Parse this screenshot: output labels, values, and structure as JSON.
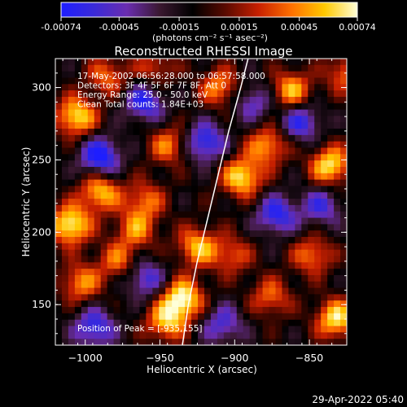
{
  "colorbar": {
    "tick_labels": [
      "-0.00074",
      "-0.00045",
      "-0.00015",
      "0.00015",
      "0.00045",
      "0.00074"
    ],
    "units_label": "(photons cm⁻² s⁻¹ asec⁻²)",
    "range": [
      -0.00074,
      0.00074
    ],
    "colors": [
      "#1e1eff",
      "#3a2ad8",
      "#6a2db0",
      "#3a1830",
      "#000000",
      "#5a0a00",
      "#c82000",
      "#ff7000",
      "#ffc800",
      "#ffffd8"
    ]
  },
  "chart_data": {
    "type": "heatmap",
    "title": "Reconstructed RHESSI Image",
    "xlabel": "Heliocentric X (arcsec)",
    "ylabel": "Heliocentric Y (arcsec)",
    "xlim": [
      -1020,
      -825
    ],
    "ylim": [
      122,
      320
    ],
    "xticks": [
      -1000,
      -950,
      -900,
      -850
    ],
    "yticks": [
      150,
      200,
      250,
      300
    ],
    "xtick_labels": [
      "−1000",
      "−950",
      "−900",
      "−850"
    ],
    "ytick_labels": [
      "150",
      "200",
      "250",
      "300"
    ],
    "annotations": [
      "17-May-2002 06:56:28.000 to 06:57:58.000",
      "Detectors: 3F 4F 5F 6F 7F 8F, Att 0",
      "Energy Range: 25.0 - 50.0 keV",
      "Clean    Total counts: 1.84E+03"
    ],
    "peak_label": "Position of Peak = [-935,155]",
    "limb_points": [
      [
        -935,
        122
      ],
      [
        -931,
        150
      ],
      [
        -925,
        180
      ],
      [
        -918,
        210
      ],
      [
        -911,
        240
      ],
      [
        -904,
        270
      ],
      [
        -896,
        300
      ],
      [
        -891,
        320
      ]
    ],
    "blobs": [
      {
        "x": -1010,
        "y": 205,
        "v": 1.0
      },
      {
        "x": -1006,
        "y": 280,
        "v": 0.9
      },
      {
        "x": -1003,
        "y": 165,
        "v": 0.65
      },
      {
        "x": -990,
        "y": 228,
        "v": 0.8
      },
      {
        "x": -978,
        "y": 180,
        "v": 0.55
      },
      {
        "x": -960,
        "y": 222,
        "v": 0.55
      },
      {
        "x": -985,
        "y": 308,
        "v": 0.55
      },
      {
        "x": -966,
        "y": 202,
        "v": 0.6
      },
      {
        "x": -944,
        "y": 260,
        "v": 0.6
      },
      {
        "x": -925,
        "y": 190,
        "v": 0.75
      },
      {
        "x": -935,
        "y": 154,
        "v": 1.0
      },
      {
        "x": -946,
        "y": 138,
        "v": 0.75
      },
      {
        "x": -910,
        "y": 300,
        "v": 0.65
      },
      {
        "x": -895,
        "y": 238,
        "v": 0.9
      },
      {
        "x": -902,
        "y": 184,
        "v": 0.5
      },
      {
        "x": -878,
        "y": 260,
        "v": 0.7
      },
      {
        "x": -862,
        "y": 298,
        "v": 0.75
      },
      {
        "x": -836,
        "y": 246,
        "v": 0.9
      },
      {
        "x": -848,
        "y": 184,
        "v": 0.6
      },
      {
        "x": -832,
        "y": 140,
        "v": 0.9
      },
      {
        "x": -876,
        "y": 155,
        "v": 0.55
      },
      {
        "x": -826,
        "y": 310,
        "v": 0.55
      },
      {
        "x": -953,
        "y": 313,
        "v": 0.45
      },
      {
        "x": -990,
        "y": 252,
        "v": -0.85
      },
      {
        "x": -994,
        "y": 134,
        "v": -0.7
      },
      {
        "x": -960,
        "y": 290,
        "v": -0.7
      },
      {
        "x": -920,
        "y": 262,
        "v": -0.75
      },
      {
        "x": -872,
        "y": 212,
        "v": -0.7
      },
      {
        "x": -856,
        "y": 276,
        "v": -0.65
      },
      {
        "x": -908,
        "y": 136,
        "v": -0.55
      },
      {
        "x": -960,
        "y": 168,
        "v": -0.6
      },
      {
        "x": -842,
        "y": 218,
        "v": -0.55
      },
      {
        "x": -888,
        "y": 290,
        "v": -0.5
      }
    ]
  },
  "footer": {
    "date": "29-Apr-2022 05:40"
  }
}
